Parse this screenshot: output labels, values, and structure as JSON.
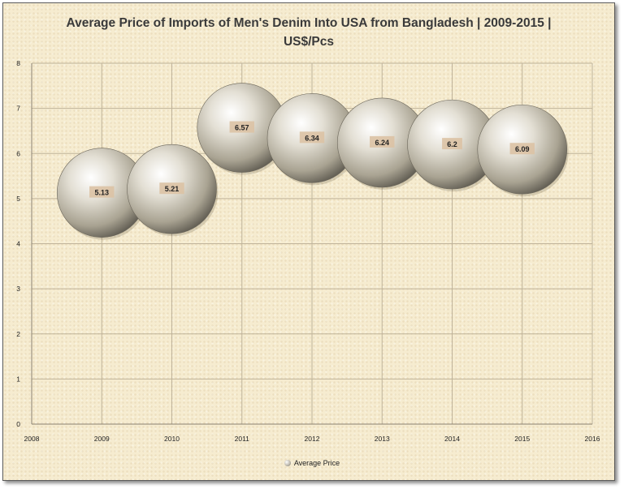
{
  "chart_data": {
    "type": "bubble",
    "title": "Average Price of Imports of Men's Denim Into USA from Bangladesh  | 2009-2015 | US$/Pcs",
    "x": [
      2009,
      2010,
      2011,
      2012,
      2013,
      2014,
      2015
    ],
    "series": [
      {
        "name": "Average Price",
        "values": [
          5.13,
          5.21,
          6.57,
          6.34,
          6.24,
          6.2,
          6.09
        ]
      }
    ],
    "data_labels": [
      "5.13",
      "5.21",
      "6.57",
      "6.34",
      "6.24",
      "6.2",
      "6.09"
    ],
    "xlim": [
      2008,
      2016
    ],
    "ylim": [
      0,
      8
    ],
    "x_ticks": [
      "2008",
      "2009",
      "2010",
      "2011",
      "2012",
      "2013",
      "2014",
      "2015",
      "2016"
    ],
    "y_ticks": [
      "0",
      "1",
      "2",
      "3",
      "4",
      "5",
      "6",
      "7",
      "8"
    ],
    "grid": true,
    "legend_position": "bottom",
    "colors": {
      "bubble": "#c9c3b3",
      "label_bg": "#dcc2a4",
      "grid": "#bfb39a"
    }
  }
}
